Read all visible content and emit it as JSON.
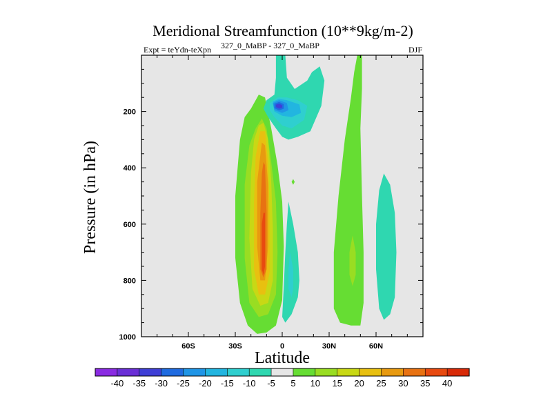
{
  "chart_data": {
    "type": "contour",
    "title": "Meridional Streamfunction (10**9kg/m-2)",
    "subtitle_left": "Expt = teYdn-teXpn",
    "subtitle_sup": "327_0_MaBP - 327_0_MaBP",
    "season": "DJF",
    "xlabel": "Latitude",
    "ylabel": "Pressure (in hPa)",
    "xlim": [
      -90,
      90
    ],
    "ylim": [
      1000,
      0
    ],
    "x_ticks": [
      "60S",
      "30S",
      "0",
      "30N",
      "60N"
    ],
    "x_tick_values": [
      -60,
      -30,
      0,
      30,
      60
    ],
    "y_ticks": [
      "200",
      "400",
      "600",
      "800",
      "1000"
    ],
    "y_tick_values": [
      200,
      400,
      600,
      800,
      1000
    ],
    "colorbar": {
      "labels": [
        "-40",
        "-35",
        "-30",
        "-25",
        "-20",
        "-15",
        "-10",
        "-5",
        "5",
        "10",
        "15",
        "20",
        "25",
        "30",
        "35",
        "40"
      ],
      "colors": [
        "#8a2be2",
        "#6a2fd6",
        "#3f3fd6",
        "#1f6be0",
        "#1f95e6",
        "#22b5e0",
        "#2fcfcf",
        "#2fd7b0",
        "#e6e6e6",
        "#66dd33",
        "#99dd22",
        "#c8d815",
        "#e8c010",
        "#e89a10",
        "#e87212",
        "#e84a10",
        "#d82a08"
      ]
    },
    "features": [
      {
        "name": "sh-positive-cell",
        "lat_range": [
          -30,
          0
        ],
        "p_range": [
          140,
          980
        ],
        "max": 35,
        "center_lat": -12,
        "center_p": 700
      },
      {
        "name": "upper-negative-cell",
        "lat_range": [
          -12,
          27
        ],
        "p_range": [
          0,
          300
        ],
        "min": -30,
        "center_lat": -4,
        "center_p": 180
      },
      {
        "name": "equatorial-negative-tongue",
        "lat_range": [
          -2,
          12
        ],
        "p_range": [
          520,
          950
        ],
        "min": -10
      },
      {
        "name": "nh-positive-band",
        "lat_range": [
          33,
          52
        ],
        "p_range": [
          0,
          960
        ],
        "max": 15
      },
      {
        "name": "nh-negative-band",
        "lat_range": [
          60,
          73
        ],
        "p_range": [
          420,
          940
        ],
        "min": -10
      }
    ]
  }
}
